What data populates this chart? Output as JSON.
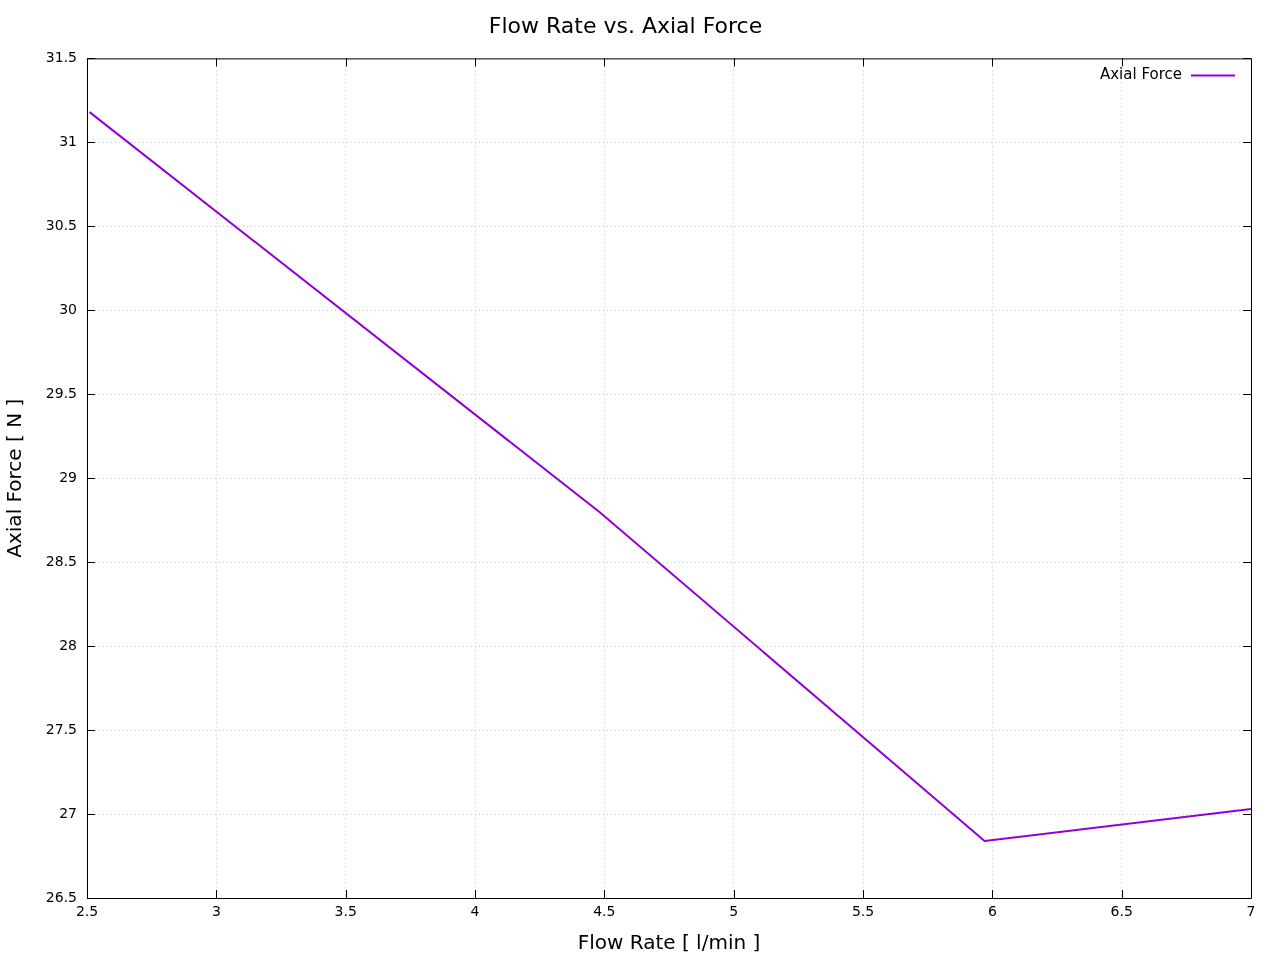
{
  "chart_data": {
    "type": "line",
    "title": "Flow Rate vs. Axial Force",
    "xlabel": "Flow Rate [ l/min ]",
    "ylabel": "Axial Force [ N ]",
    "x": [
      2.51,
      4.48,
      5.97,
      7.0
    ],
    "series": [
      {
        "name": "Axial Force",
        "color": "#9400d3",
        "values": [
          31.18,
          28.8,
          26.84,
          27.03
        ]
      }
    ],
    "xlim": [
      2.5,
      7
    ],
    "xticks": [
      2.5,
      3,
      3.5,
      4,
      4.5,
      5,
      5.5,
      6,
      6.5,
      7
    ],
    "ylim": [
      26.5,
      31.5
    ],
    "yticks": [
      26.5,
      27,
      27.5,
      28,
      28.5,
      29,
      29.5,
      30,
      30.5,
      31,
      31.5
    ],
    "grid": true,
    "legend": "top right",
    "marker": "none",
    "line_style": "solid"
  }
}
